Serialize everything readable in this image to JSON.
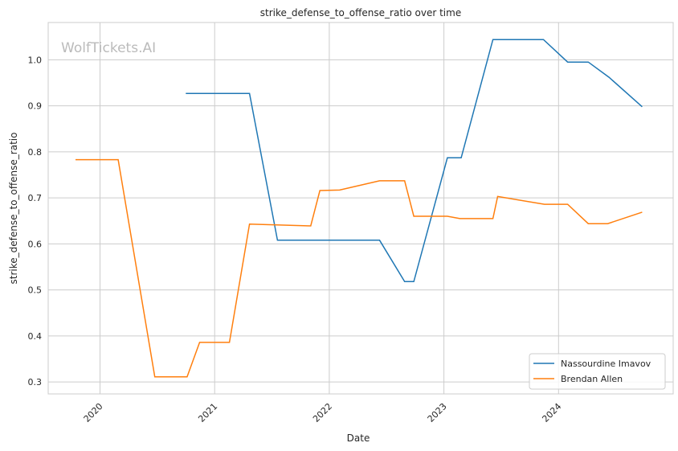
{
  "chart_data": {
    "type": "line",
    "title": "strike_defense_to_offense_ratio over time",
    "xlabel": "Date",
    "ylabel": "strike_defense_to_offense_ratio",
    "watermark": "WolfTickets.AI",
    "xlim": [
      "2019-07-20",
      "2025-01-01"
    ],
    "ylim": [
      0.274,
      1.081
    ],
    "x_ticks": [
      "2020",
      "2021",
      "2022",
      "2023",
      "2024"
    ],
    "y_ticks": [
      "0.3",
      "0.4",
      "0.5",
      "0.6",
      "0.7",
      "0.8",
      "0.9",
      "1.0"
    ],
    "grid": true,
    "legend_position": "lower-right",
    "series": [
      {
        "name": "Nassourdine Imavov",
        "color": "#1f77b4",
        "x": [
          "2020-10-01",
          "2021-04-22",
          "2021-07-20",
          "2022-06-10",
          "2022-08-29",
          "2022-09-27",
          "2023-01-12",
          "2023-02-25",
          "2023-06-06",
          "2023-11-14",
          "2024-01-30",
          "2024-04-05",
          "2024-06-10",
          "2024-09-24"
        ],
        "y": [
          0.927,
          0.927,
          0.608,
          0.608,
          0.518,
          0.518,
          0.787,
          0.787,
          1.044,
          1.044,
          0.995,
          0.995,
          0.962,
          0.898
        ]
      },
      {
        "name": "Brendan Allen",
        "color": "#ff7f0e",
        "x": [
          "2019-10-15",
          "2020-02-28",
          "2020-06-24",
          "2020-10-05",
          "2020-11-14",
          "2021-02-17",
          "2021-04-22",
          "2021-11-03",
          "2021-12-02",
          "2022-02-03",
          "2022-06-10",
          "2022-08-29",
          "2022-09-27",
          "2023-01-12",
          "2023-02-21",
          "2023-06-06",
          "2023-06-21",
          "2023-11-17",
          "2024-01-30",
          "2024-04-05",
          "2024-06-06",
          "2024-09-24"
        ],
        "y": [
          0.783,
          0.783,
          0.311,
          0.311,
          0.386,
          0.386,
          0.643,
          0.639,
          0.716,
          0.717,
          0.737,
          0.737,
          0.66,
          0.66,
          0.655,
          0.655,
          0.703,
          0.686,
          0.686,
          0.644,
          0.644,
          0.669
        ]
      }
    ]
  }
}
